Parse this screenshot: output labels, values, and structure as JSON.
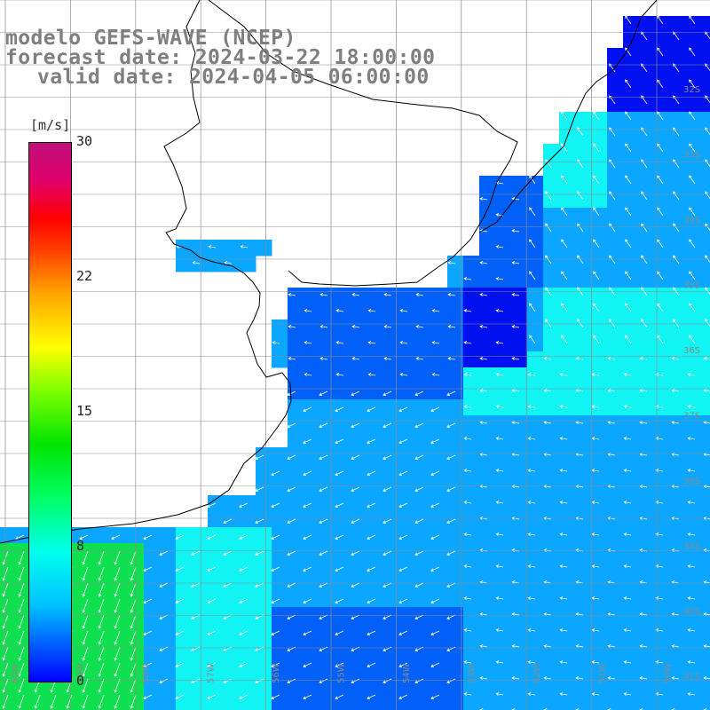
{
  "header": {
    "line1": "modelo GEFS-WAVE (NCEP)",
    "line2": "forecast date: 2024-03-22 18:00:00",
    "line3": "valid date: 2024-04-05 06:00:00"
  },
  "legend": {
    "unit": "[m/s]",
    "ticks": [
      "30",
      "22",
      "15",
      "8",
      "0"
    ]
  },
  "axes": {
    "lat_labels": [
      "32S",
      "33S",
      "34S",
      "35S",
      "36S",
      "37S",
      "38S",
      "39S",
      "40S",
      "41S"
    ],
    "lon_labels": [
      "60W",
      "59W",
      "58W",
      "57W",
      "56W",
      "55W",
      "54W",
      "53W",
      "52W",
      "51W",
      "50W"
    ]
  },
  "colors": {
    "calm": "#0010ee",
    "light": "#0060f8",
    "moderate": "#0aa6ff",
    "fresh": "#12f4f4",
    "strong": "#10e050",
    "land": "#ffffff",
    "grid": "#8c8c8c",
    "coast": "#000000",
    "arrow": "#ffffff"
  },
  "map_meta": {
    "region": "Rio de la Plata / SW Atlantic",
    "variable": "wind speed and direction at 10 m",
    "scale_max": 30,
    "scale_min": 0
  }
}
